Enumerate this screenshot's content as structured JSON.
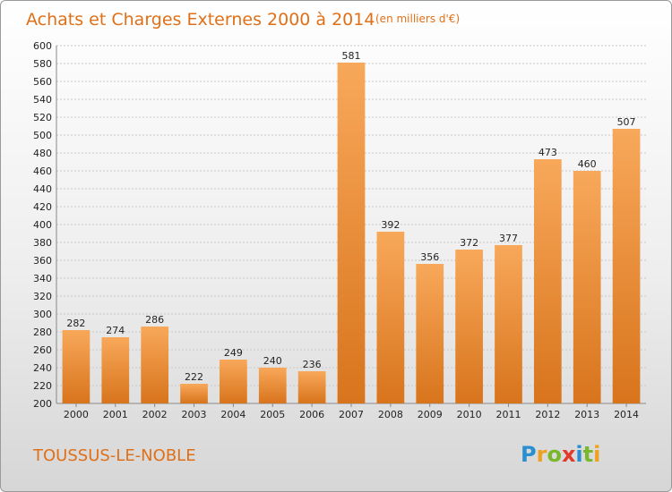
{
  "chart_data": {
    "type": "bar",
    "title": "Achats et Charges Externes 2000 à 2014",
    "subtitle": "(en milliers d'€)",
    "categories": [
      "2000",
      "2001",
      "2002",
      "2003",
      "2004",
      "2005",
      "2006",
      "2007",
      "2008",
      "2009",
      "2010",
      "2011",
      "2012",
      "2013",
      "2014"
    ],
    "values": [
      282,
      274,
      286,
      222,
      249,
      240,
      236,
      581,
      392,
      356,
      372,
      377,
      473,
      460,
      507
    ],
    "ylim": [
      200,
      600
    ],
    "ytick_step": 20,
    "grid": true,
    "bar_color": "#f08a2c"
  },
  "footer": {
    "place": "TOUSSUS-LE-NOBLE",
    "logo": {
      "text": "Proxiti",
      "letters": [
        "P",
        "r",
        "o",
        "x",
        "i",
        "t",
        "i"
      ],
      "colors": [
        "#2a8fd0",
        "#f0a020",
        "#79b82a",
        "#e03a2a",
        "#2a8fd0",
        "#79b82a",
        "#f0a020"
      ]
    }
  }
}
